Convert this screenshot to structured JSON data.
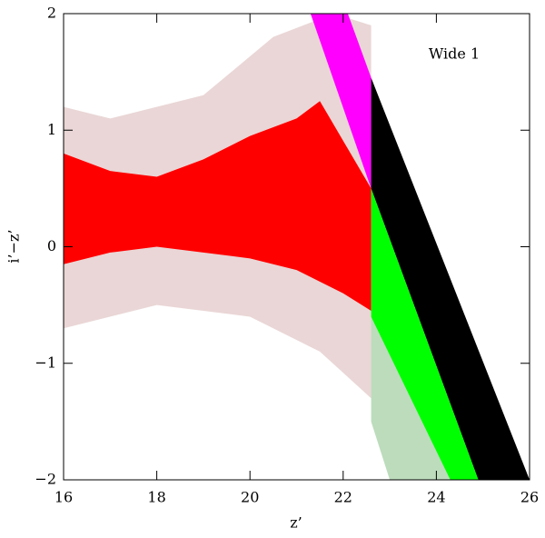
{
  "chart_data": {
    "type": "scatter",
    "xlabel": "z’",
    "ylabel": "i’−z’",
    "annotation": "Wide 1",
    "xlim": [
      16,
      26
    ],
    "ylim": [
      -2,
      2
    ],
    "xticks": [
      16,
      18,
      20,
      22,
      24,
      26
    ],
    "yticks": [
      {
        "value": -2,
        "label": "−2"
      },
      {
        "value": -1,
        "label": "−1"
      },
      0,
      1,
      2
    ],
    "regions": [
      {
        "color": "#8b1a1a",
        "opacity": 0.18,
        "x": [
          16,
          18,
          20,
          21.5,
          22.6,
          22.6,
          21.8,
          20.5,
          19,
          17,
          16
        ],
        "y": [
          -0.7,
          -0.5,
          -0.6,
          -0.9,
          -1.3,
          1.9,
          2,
          1.8,
          1.3,
          1.1,
          1.2
        ]
      },
      {
        "color": "#ff0000",
        "opacity": 1,
        "x": [
          16,
          17,
          18,
          19,
          20,
          21,
          22,
          22.6,
          22.6,
          21.5,
          21,
          20,
          19,
          18,
          17,
          16
        ],
        "y": [
          -0.15,
          -0.05,
          0,
          -0.05,
          -0.1,
          -0.2,
          -0.4,
          -0.55,
          0.5,
          1.25,
          1.1,
          0.95,
          0.75,
          0.6,
          0.65,
          0.8
        ]
      },
      {
        "color": "#ff00ff",
        "opacity": 1,
        "x": [
          21.3,
          22.1,
          22.6,
          22.6
        ],
        "y": [
          2,
          2,
          1.45,
          0.5
        ]
      },
      {
        "color": "#000000",
        "opacity": 1,
        "x": [
          22.6,
          26,
          24.9,
          22.6
        ],
        "y": [
          1.45,
          -2,
          -2,
          0.5
        ]
      },
      {
        "color": "#228b22",
        "opacity": 0.3,
        "x": [
          22.6,
          24.9,
          23,
          22.6
        ],
        "y": [
          -0.6,
          -2,
          -2,
          -1.5
        ]
      },
      {
        "color": "#00ff00",
        "opacity": 1,
        "x": [
          22.6,
          24.9,
          24.3,
          22.6
        ],
        "y": [
          0.5,
          -2,
          -2,
          -0.6
        ]
      }
    ]
  }
}
